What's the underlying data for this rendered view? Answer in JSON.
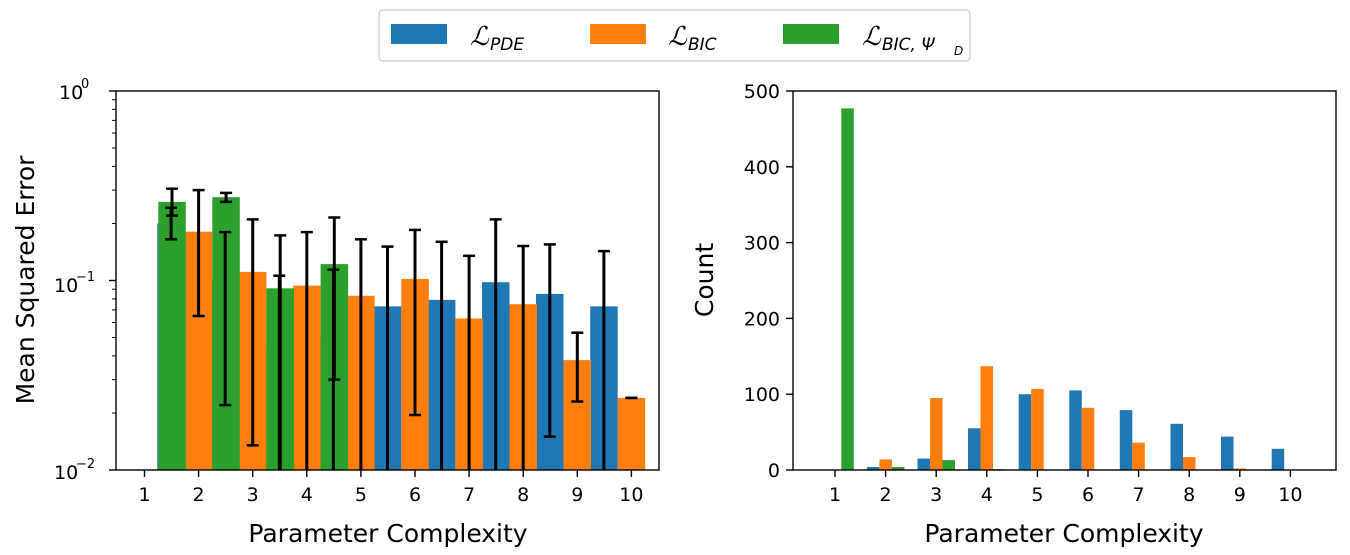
{
  "legend": [
    {
      "key": "pde",
      "symbol": "ℒ",
      "sub": "PDE",
      "color": "#1f77b4"
    },
    {
      "key": "bic",
      "symbol": "ℒ",
      "sub": "BIC",
      "color": "#ff7f0e"
    },
    {
      "key": "bic_psi",
      "symbol": "ℒ",
      "sub": "BIC, Ψ",
      "subsub": "D",
      "color": "#2ca02c"
    }
  ],
  "chart_data": [
    {
      "type": "bar",
      "panel": "left",
      "categories": [
        "1",
        "2",
        "3",
        "4",
        "5",
        "6",
        "7",
        "8",
        "9",
        "10"
      ],
      "xlabel": "Parameter Complexity",
      "ylabel": "Mean Squared Error",
      "yscale": "log",
      "ylim": [
        0.01,
        1
      ],
      "yticks": [
        {
          "base": "10",
          "exp": "0"
        },
        {
          "base": "10",
          "exp": "−1"
        },
        {
          "base": "10",
          "exp": "−2"
        }
      ],
      "series": [
        {
          "name": "L_PDE",
          "color": "#1f77b4",
          "values": [
            null,
            0.2,
            0.102,
            0.046,
            0.05,
            0.073,
            0.079,
            0.098,
            0.085,
            0.073
          ],
          "err_low": [
            null,
            0.165,
            0.022,
            0.009,
            0.009,
            0.01,
            0.009,
            0.009,
            0.015,
            0.008
          ],
          "err_high": [
            null,
            0.242,
            0.18,
            0.106,
            0.114,
            0.151,
            0.16,
            0.21,
            0.155,
            0.143
          ]
        },
        {
          "name": "L_BIC",
          "color": "#ff7f0e",
          "values": [
            null,
            0.181,
            0.111,
            0.094,
            0.083,
            0.102,
            0.063,
            0.075,
            0.038,
            0.024
          ],
          "err_low": [
            null,
            0.065,
            0.0135,
            0.009,
            0.009,
            0.0195,
            0.009,
            0.009,
            0.023,
            0.024
          ],
          "err_high": [
            null,
            0.3,
            0.21,
            0.18,
            0.165,
            0.185,
            0.135,
            0.152,
            0.053,
            0.024
          ]
        },
        {
          "name": "L_BIC,PsiD",
          "color": "#2ca02c",
          "values": [
            0.26,
            0.275,
            0.091,
            0.122,
            null,
            null,
            null,
            null,
            null,
            null
          ],
          "err_low": [
            0.22,
            0.26,
            0.009,
            0.03,
            null,
            null,
            null,
            null,
            null,
            null
          ],
          "err_high": [
            0.305,
            0.29,
            0.173,
            0.215,
            null,
            null,
            null,
            null,
            null,
            null
          ]
        }
      ]
    },
    {
      "type": "bar",
      "panel": "right",
      "categories": [
        "1",
        "2",
        "3",
        "4",
        "5",
        "6",
        "7",
        "8",
        "9",
        "10"
      ],
      "xlabel": "Parameter Complexity",
      "ylabel": "Count",
      "ylim": [
        0,
        500
      ],
      "yticks": [
        "0",
        "100",
        "200",
        "300",
        "400",
        "500"
      ],
      "series": [
        {
          "name": "L_PDE",
          "color": "#1f77b4",
          "values": [
            0,
            4,
            15,
            55,
            100,
            105,
            79,
            61,
            44,
            28
          ]
        },
        {
          "name": "L_BIC",
          "color": "#ff7f0e",
          "values": [
            0,
            14,
            95,
            137,
            107,
            82,
            36,
            17,
            2,
            0
          ]
        },
        {
          "name": "L_BIC,PsiD",
          "color": "#2ca02c",
          "values": [
            477,
            4,
            13,
            1,
            0,
            0,
            0,
            0,
            0,
            0
          ]
        }
      ]
    }
  ]
}
